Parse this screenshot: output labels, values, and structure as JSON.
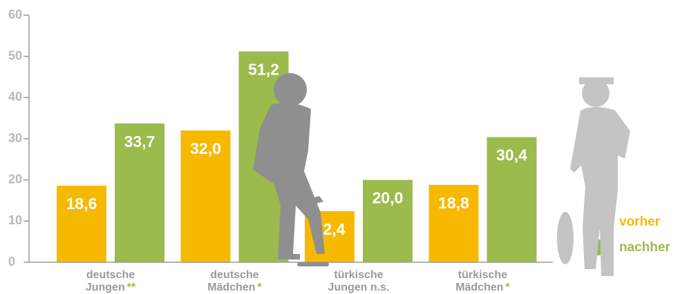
{
  "chart_data": {
    "type": "bar",
    "categories": [
      "deutsche Jungen",
      "deutsche Mädchen",
      "türkische Jungen n.s.",
      "türkische Mädchen"
    ],
    "significance": [
      "**",
      "*",
      null,
      "*"
    ],
    "series": [
      {
        "name": "vorher",
        "color": "#f7b900",
        "values": [
          18.6,
          32.0,
          12.4,
          18.8
        ],
        "value_labels": [
          "18,6",
          "32,0",
          "12,4",
          "18,8"
        ]
      },
      {
        "name": "nachher",
        "color": "#9dba4c",
        "values": [
          33.7,
          51.2,
          20.0,
          30.4
        ],
        "value_labels": [
          "33,7",
          "51,2",
          "20,0",
          "30,4"
        ]
      }
    ],
    "ylim": [
      0,
      60
    ],
    "yticks": [
      0,
      10,
      20,
      30,
      40,
      50,
      60
    ]
  }
}
